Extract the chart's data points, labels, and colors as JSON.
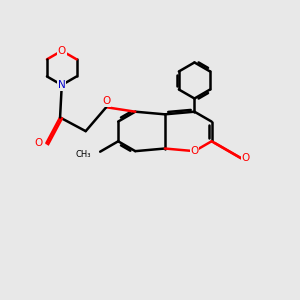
{
  "background_color": "#e8e8e8",
  "bond_color": "#000000",
  "oxygen_color": "#ff0000",
  "nitrogen_color": "#0000cc",
  "line_width": 1.8,
  "dbo": 0.07,
  "figsize": [
    3.0,
    3.0
  ],
  "dpi": 100,
  "xlim": [
    0,
    10
  ],
  "ylim": [
    0,
    10
  ]
}
